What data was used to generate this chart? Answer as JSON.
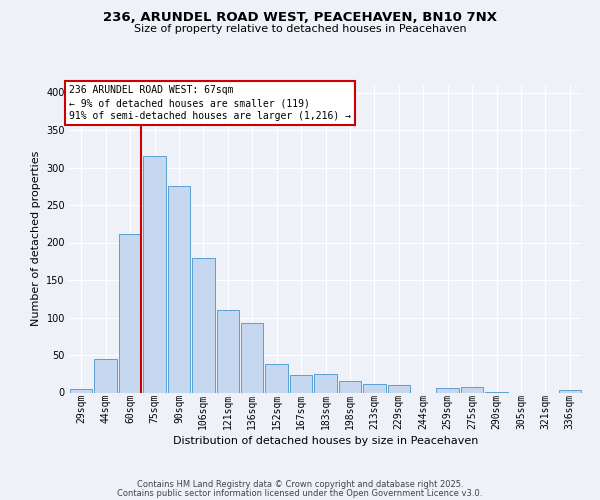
{
  "title_line1": "236, ARUNDEL ROAD WEST, PEACEHAVEN, BN10 7NX",
  "title_line2": "Size of property relative to detached houses in Peacehaven",
  "xlabel": "Distribution of detached houses by size in Peacehaven",
  "ylabel": "Number of detached properties",
  "bar_labels": [
    "29sqm",
    "44sqm",
    "60sqm",
    "75sqm",
    "90sqm",
    "106sqm",
    "121sqm",
    "136sqm",
    "152sqm",
    "167sqm",
    "183sqm",
    "198sqm",
    "213sqm",
    "229sqm",
    "244sqm",
    "259sqm",
    "275sqm",
    "290sqm",
    "305sqm",
    "321sqm",
    "336sqm"
  ],
  "bar_values": [
    5,
    45,
    212,
    315,
    275,
    180,
    110,
    93,
    38,
    23,
    25,
    15,
    12,
    10,
    0,
    6,
    7,
    1,
    0,
    0,
    3
  ],
  "bar_color": "#c5d8f0",
  "bar_edge_color": "#5a9fd4",
  "vline_color": "#cc0000",
  "vline_x_index": 2,
  "annotation_box_text": "236 ARUNDEL ROAD WEST: 67sqm\n← 9% of detached houses are smaller (119)\n91% of semi-detached houses are larger (1,216) →",
  "annotation_box_color": "#cc0000",
  "ylim": [
    0,
    410
  ],
  "yticks": [
    0,
    50,
    100,
    150,
    200,
    250,
    300,
    350,
    400
  ],
  "footer_line1": "Contains HM Land Registry data © Crown copyright and database right 2025.",
  "footer_line2": "Contains public sector information licensed under the Open Government Licence v3.0.",
  "bg_color": "#eef2f8",
  "grid_color": "#ffffff",
  "title1_fontsize": 9.5,
  "title2_fontsize": 8.0,
  "ylabel_fontsize": 8.0,
  "xlabel_fontsize": 8.0,
  "tick_fontsize": 7.0,
  "footer_fontsize": 6.0
}
